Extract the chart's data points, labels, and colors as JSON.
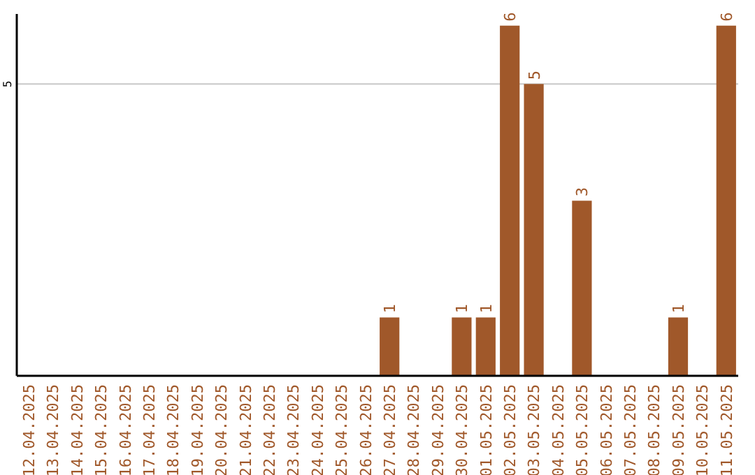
{
  "chart_data": {
    "type": "bar",
    "categories": [
      "12.04.2025",
      "13.04.2025",
      "14.04.2025",
      "15.04.2025",
      "16.04.2025",
      "17.04.2025",
      "18.04.2025",
      "19.04.2025",
      "20.04.2025",
      "21.04.2025",
      "22.04.2025",
      "23.04.2025",
      "24.04.2025",
      "25.04.2025",
      "26.04.2025",
      "27.04.2025",
      "28.04.2025",
      "29.04.2025",
      "30.04.2025",
      "01.05.2025",
      "02.05.2025",
      "03.05.2025",
      "04.05.2025",
      "05.05.2025",
      "06.05.2025",
      "07.05.2025",
      "08.05.2025",
      "09.05.2025",
      "10.05.2025",
      "11.05.2025"
    ],
    "values": [
      null,
      null,
      null,
      null,
      null,
      null,
      null,
      null,
      null,
      null,
      null,
      null,
      null,
      null,
      null,
      1,
      null,
      null,
      1,
      1,
      6,
      5,
      null,
      3,
      null,
      null,
      null,
      1,
      null,
      6
    ],
    "value_labels": [
      null,
      null,
      null,
      null,
      null,
      null,
      null,
      null,
      null,
      null,
      null,
      null,
      null,
      null,
      null,
      "1",
      null,
      null,
      "1",
      "1",
      "6",
      "5",
      null,
      "3",
      null,
      null,
      null,
      "1",
      null,
      "6"
    ],
    "color": "#a0582a",
    "ylim": [
      0,
      6.2
    ],
    "yticks": [
      5
    ],
    "grid": "y"
  }
}
